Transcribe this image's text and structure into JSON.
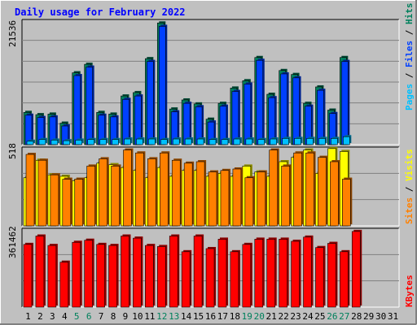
{
  "chart_data": {
    "type": "bar",
    "title": "Daily usage for February 2022",
    "days": [
      "1",
      "2",
      "3",
      "4",
      "5",
      "6",
      "7",
      "8",
      "9",
      "10",
      "11",
      "12",
      "13",
      "14",
      "15",
      "16",
      "17",
      "18",
      "19",
      "20",
      "21",
      "22",
      "23",
      "24",
      "25",
      "26",
      "27",
      "28",
      "29",
      "30",
      "31"
    ],
    "weekend_days": [
      "5",
      "6",
      "12",
      "13",
      "19",
      "20",
      "26",
      "27"
    ],
    "panels": [
      {
        "name": "hits-files-pages",
        "max_label": "21536",
        "ymax": 21536,
        "labels": [
          "Pages",
          "Files",
          "Hits"
        ],
        "series": [
          {
            "name": "Hits",
            "color": "#00805c",
            "values": [
              5700,
              5300,
              5400,
              3800,
              12700,
              14200,
              5700,
              5400,
              8600,
              9200,
              15200,
              21500,
              6300,
              7900,
              7200,
              4500,
              7300,
              10000,
              11300,
              15400,
              8900,
              13100,
              12400,
              7300,
              10200,
              6100,
              15400,
              null,
              null,
              null,
              null
            ]
          },
          {
            "name": "Files",
            "color": "#0040ff",
            "values": [
              5200,
              4800,
              4900,
              3300,
              12200,
              13700,
              5200,
              4900,
              8000,
              8600,
              14700,
              20900,
              5800,
              7300,
              6700,
              4000,
              6800,
              9400,
              10700,
              14900,
              8300,
              12500,
              11800,
              6800,
              9600,
              5500,
              14700,
              null,
              null,
              null,
              null
            ]
          },
          {
            "name": "Pages",
            "color": "#00c0ff",
            "values": [
              600,
              900,
              800,
              700,
              800,
              900,
              900,
              900,
              1000,
              1000,
              1000,
              900,
              1000,
              1000,
              1000,
              900,
              900,
              1000,
              1000,
              900,
              1000,
              1100,
              1100,
              1100,
              1100,
              1100,
              1400,
              null,
              null,
              null,
              null
            ]
          }
        ]
      },
      {
        "name": "visits-sites",
        "max_label": "518",
        "ymax": 518,
        "labels": [
          "Sites",
          "Visits"
        ],
        "series": [
          {
            "name": "Visits",
            "color": "#ffff00",
            "values": [
              330,
              450,
              350,
              340,
              310,
              330,
              430,
              420,
              400,
              380,
              330,
              400,
              340,
              380,
              380,
              340,
              360,
              340,
              410,
              370,
              340,
              440,
              470,
              520,
              360,
              530,
              510,
              null,
              null,
              null,
              null
            ]
          },
          {
            "name": "Sites",
            "color": "#ff8000",
            "values": [
              490,
              450,
              350,
              320,
              320,
              410,
              460,
              410,
              520,
              500,
              460,
              500,
              450,
              430,
              440,
              370,
              380,
              390,
              330,
              370,
              520,
              410,
              500,
              500,
              470,
              440,
              320,
              null,
              null,
              null,
              null
            ]
          }
        ]
      },
      {
        "name": "kbytes",
        "max_label": "361462",
        "ymax": 361462,
        "labels": [
          "KBytes"
        ],
        "series": [
          {
            "name": "KBytes",
            "color": "#ff0000",
            "values": [
              300000,
              340000,
              295000,
              215000,
              310000,
              320000,
              300000,
              295000,
              340000,
              330000,
              295000,
              290000,
              340000,
              265000,
              340000,
              280000,
              325000,
              265000,
              300000,
              325000,
              325000,
              325000,
              315000,
              335000,
              285000,
              305000,
              265000,
              362000,
              null,
              null,
              null
            ]
          }
        ]
      }
    ]
  }
}
